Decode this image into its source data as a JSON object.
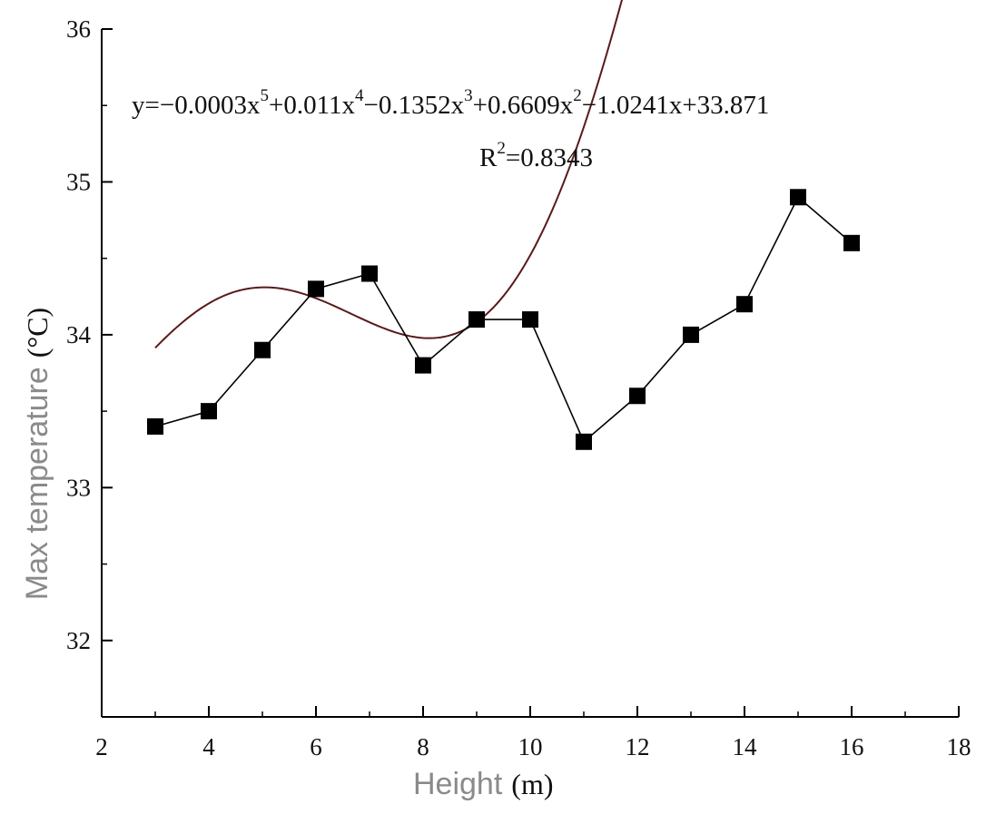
{
  "chart_data": {
    "type": "scatter",
    "xlabel": "Height",
    "xlabel_unit": "(m)",
    "ylabel": "Max temperature",
    "ylabel_unit": "(°C)",
    "xlim": [
      2,
      18
    ],
    "ylim": [
      31.5,
      36
    ],
    "x_ticks": [
      2,
      4,
      6,
      8,
      10,
      12,
      14,
      16,
      18
    ],
    "y_ticks": [
      32,
      33,
      34,
      35,
      36
    ],
    "series": [
      {
        "x": [
          3,
          4,
          5,
          6,
          7,
          8,
          9,
          10,
          11,
          12,
          13,
          14,
          15,
          16
        ],
        "y": [
          33.4,
          33.5,
          33.9,
          34.3,
          34.4,
          33.8,
          34.1,
          34.1,
          33.3,
          33.6,
          34.0,
          34.2,
          34.9,
          34.6
        ],
        "color": "#000000",
        "marker": "square",
        "line": "solid"
      }
    ],
    "fit": {
      "type": "polynomial",
      "degree": 5,
      "coefficients": [
        -0.0003,
        0.011,
        -0.1352,
        0.6609,
        -1.0241,
        33.871
      ],
      "x_range": [
        3,
        16
      ],
      "color": "#5a1a1a"
    },
    "annotations": {
      "equation_parts": [
        "y=−0.0003x",
        "5",
        "+0.011x",
        "4",
        "−0.1352x",
        "3",
        "+0.6609x",
        "2",
        "−1.0241x+33.871"
      ],
      "r2_parts": [
        "R",
        "2",
        "=0.8343"
      ]
    },
    "grid": false,
    "legend": "none"
  }
}
